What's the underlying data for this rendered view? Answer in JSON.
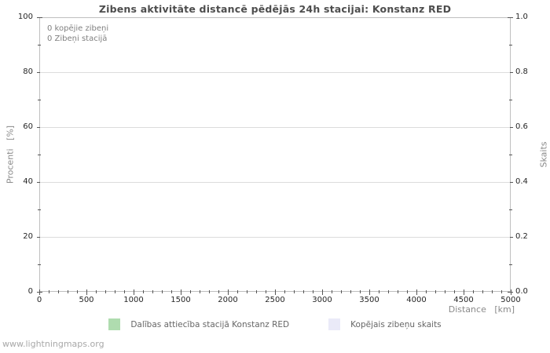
{
  "page": {
    "watermark": "www.lightningmaps.org"
  },
  "chart_data": {
    "type": "line",
    "title": "Zibens aktivitāte distancē pēdējās 24h stacijai: Konstanz RED",
    "annotations": [
      "0 kopējie zibeņi",
      "0 Zibeņi stacijā"
    ],
    "x_axis": {
      "label": "Distance   [km]",
      "min": 0,
      "max": 5000,
      "major_ticks": [
        0,
        500,
        1000,
        1500,
        2000,
        2500,
        3000,
        3500,
        4000,
        4500,
        5000
      ],
      "minor_tick_step": 100
    },
    "y_axis_left": {
      "label": "Procenti   [%]",
      "min": 0,
      "max": 100,
      "major_ticks": [
        0,
        20,
        40,
        60,
        80,
        100
      ],
      "minor_tick_step": 10
    },
    "y_axis_right": {
      "label": "Skaits",
      "min": 0,
      "max": 1,
      "major_ticks": [
        0,
        0.2,
        0.4,
        0.6,
        0.8,
        1
      ],
      "tick_decimals": 1,
      "minor_tick_step": 0.1
    },
    "grid": "horizontal-major-only",
    "legend_position": "bottom-center",
    "series": [
      {
        "name": "Dalības attiecība stacijā Konstanz RED",
        "color": "#afdcaf",
        "values": []
      },
      {
        "name": "Kopējais zibeņu skaits",
        "color": "#eaeaf8",
        "values": []
      }
    ]
  },
  "colors": {
    "title": "#4d4d4d",
    "tick_label": "#262626",
    "axis_title": "#8a8a8a",
    "annotation": "#808080",
    "legend_text": "#666666",
    "watermark": "#a8a8a8",
    "grid_line": "#dcdcdc",
    "frame": "#bfbfbf",
    "tick_mark": "#555555"
  }
}
